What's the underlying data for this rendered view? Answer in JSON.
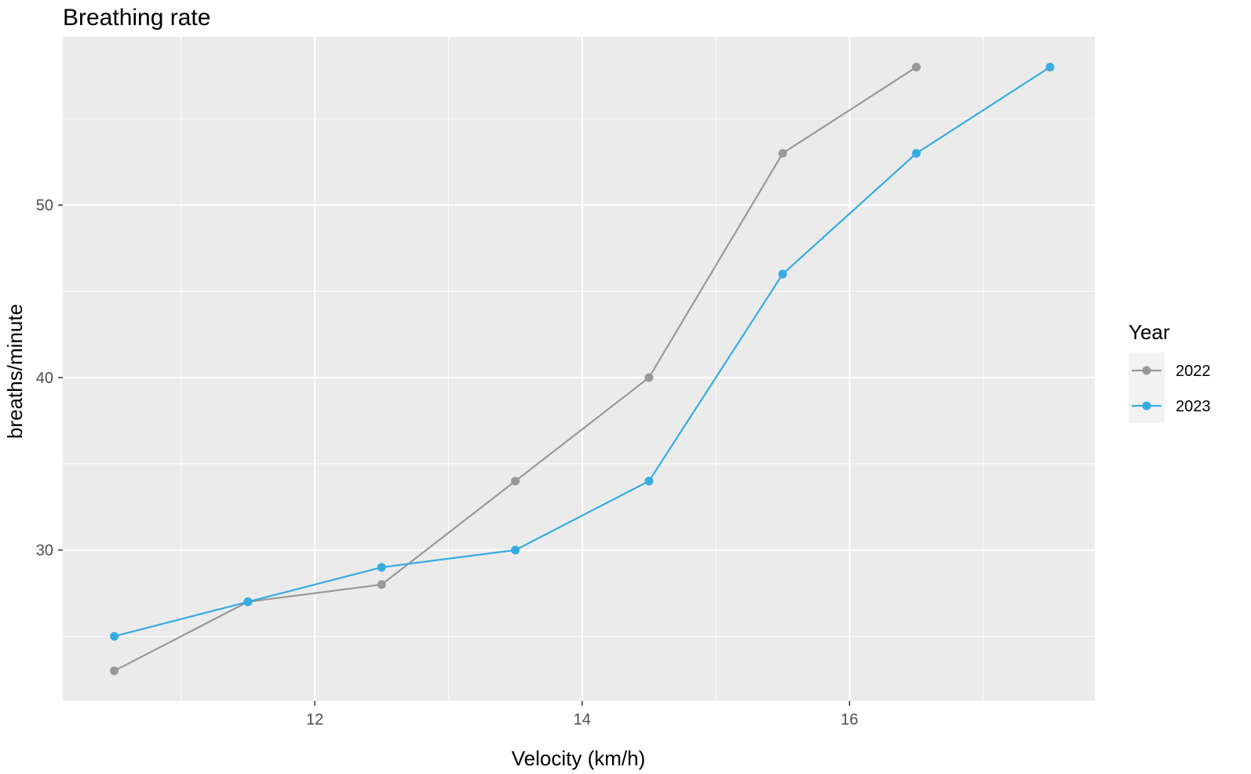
{
  "chart_data": {
    "type": "line",
    "title": "Breathing rate",
    "xlabel": "Velocity (km/h)",
    "ylabel": "breaths/minute",
    "xlim": [
      10.115,
      17.835
    ],
    "ylim": [
      21.25,
      59.75
    ],
    "x_ticks": [
      12,
      14,
      16
    ],
    "y_ticks": [
      30,
      40,
      50
    ],
    "grid": true,
    "legend": {
      "title": "Year",
      "position": "right"
    },
    "series": [
      {
        "name": "2022",
        "color": "#999999",
        "x": [
          10.5,
          11.5,
          12.5,
          13.5,
          14.5,
          15.5,
          16.5
        ],
        "y": [
          23,
          27,
          28,
          34,
          40,
          53,
          58
        ]
      },
      {
        "name": "2023",
        "color": "#36ace2",
        "x": [
          10.5,
          11.5,
          12.5,
          13.5,
          14.5,
          15.5,
          16.5,
          17.5
        ],
        "y": [
          25,
          27,
          29,
          30,
          34,
          46,
          53,
          58
        ]
      }
    ]
  }
}
